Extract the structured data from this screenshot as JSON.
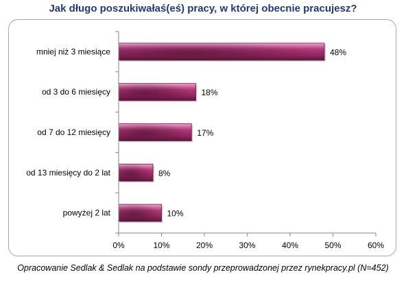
{
  "chart_data": {
    "type": "bar",
    "orientation": "horizontal",
    "title": "Jak długo poszukiwałaś(eś) pracy, w której obecnie pracujesz?",
    "categories": [
      "mniej niż 3 miesiące",
      "od 3 do 6 miesięcy",
      "od 7 do 12 miesięcy",
      "od 13 miesięcy do 2 lat",
      "powyżej 2 lat"
    ],
    "values": [
      48,
      18,
      17,
      8,
      10
    ],
    "data_labels": [
      "48%",
      "18%",
      "17%",
      "8%",
      "10%"
    ],
    "xlim": [
      0,
      60
    ],
    "xticks": [
      0,
      10,
      20,
      30,
      40,
      50,
      60
    ],
    "xtick_labels": [
      "0%",
      "10%",
      "20%",
      "30%",
      "40%",
      "50%",
      "60%"
    ],
    "grid": false,
    "bar_color": "#a8306e",
    "bar_color_dark": "#6a1745"
  },
  "footnote": "Opracowanie Sedlak & Sedlak na podstawie sondy przeprowadzonej przez rynekpracy.pl (N=452)"
}
